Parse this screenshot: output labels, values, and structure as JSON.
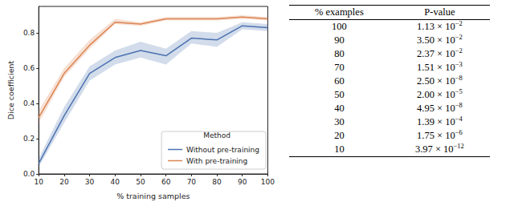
{
  "chart_data": {
    "type": "line",
    "x_label": "% training samples",
    "y_label": "Dice coefficient",
    "xlim": [
      10,
      100
    ],
    "xticks": [
      10,
      20,
      30,
      40,
      50,
      60,
      70,
      80,
      90,
      100
    ],
    "ylim": [
      0,
      0.95
    ],
    "yticks": [
      {
        "value": 0,
        "label": "0.0"
      },
      {
        "value": 0.2,
        "label": "0.2"
      },
      {
        "value": 0.4,
        "label": "0.4"
      },
      {
        "value": 0.6,
        "label": "0.6"
      },
      {
        "value": 0.8,
        "label": "0.8"
      }
    ],
    "grid": false,
    "legend": "lower right",
    "legend_title": "Method",
    "x": [
      10,
      20,
      30,
      40,
      50,
      60,
      70,
      80,
      90,
      100
    ],
    "series": [
      {
        "name": "Without pre-training",
        "color": "#4c72b0",
        "values": [
          0.06,
          0.33,
          0.57,
          0.66,
          0.7,
          0.67,
          0.77,
          0.76,
          0.84,
          0.83
        ],
        "lower": [
          0.04,
          0.29,
          0.53,
          0.62,
          0.66,
          0.62,
          0.74,
          0.72,
          0.82,
          0.81
        ],
        "upper": [
          0.09,
          0.38,
          0.61,
          0.7,
          0.75,
          0.71,
          0.81,
          0.8,
          0.86,
          0.85
        ]
      },
      {
        "name": "With pre-training",
        "color": "#dd8452",
        "values": [
          0.32,
          0.57,
          0.73,
          0.86,
          0.85,
          0.88,
          0.88,
          0.88,
          0.89,
          0.88
        ],
        "lower": [
          0.29,
          0.55,
          0.71,
          0.85,
          0.84,
          0.87,
          0.87,
          0.87,
          0.88,
          0.87
        ],
        "upper": [
          0.36,
          0.6,
          0.76,
          0.88,
          0.86,
          0.89,
          0.89,
          0.89,
          0.9,
          0.89
        ]
      }
    ]
  },
  "table": {
    "header": [
      "% examples",
      "P-value"
    ],
    "rows": [
      {
        "examples": "100",
        "mantissa": "1.13",
        "times": "×",
        "base": "10",
        "exponent": "−2"
      },
      {
        "examples": "90",
        "mantissa": "3.50",
        "times": "×",
        "base": "10",
        "exponent": "−2"
      },
      {
        "examples": "80",
        "mantissa": "2.37",
        "times": "×",
        "base": "10",
        "exponent": "−2"
      },
      {
        "examples": "70",
        "mantissa": "1.51",
        "times": "×",
        "base": "10",
        "exponent": "−3"
      },
      {
        "examples": "60",
        "mantissa": "2.50",
        "times": "×",
        "base": "10",
        "exponent": "−8"
      },
      {
        "examples": "50",
        "mantissa": "2.00",
        "times": "×",
        "base": "10",
        "exponent": "−5"
      },
      {
        "examples": "40",
        "mantissa": "4.95",
        "times": "×",
        "base": "10",
        "exponent": "−8"
      },
      {
        "examples": "30",
        "mantissa": "1.39",
        "times": "×",
        "base": "10",
        "exponent": "−4"
      },
      {
        "examples": "20",
        "mantissa": "1.75",
        "times": "×",
        "base": "10",
        "exponent": "−6"
      },
      {
        "examples": "10",
        "mantissa": "3.97",
        "times": "×",
        "base": "10",
        "exponent": "−12"
      }
    ]
  }
}
